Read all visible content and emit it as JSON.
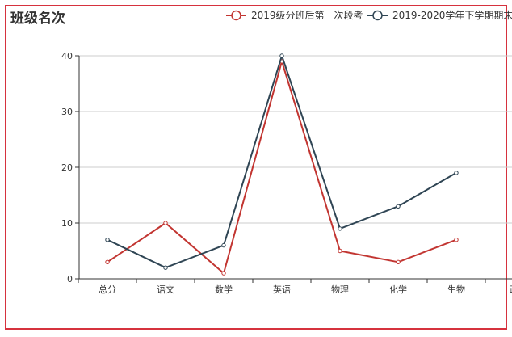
{
  "chart_data": {
    "type": "line",
    "title": "班级名次",
    "categories": [
      "总分",
      "语文",
      "数学",
      "英语",
      "物理",
      "化学",
      "生物",
      "政"
    ],
    "ylim": [
      0,
      40
    ],
    "yticks": [
      0,
      10,
      20,
      30,
      40
    ],
    "grid": true,
    "legend_position": "top-right",
    "series": [
      {
        "name": "2019级分班后第一次段考",
        "color": "#c23531",
        "values": [
          3,
          10,
          1,
          39,
          5,
          3,
          7,
          null
        ]
      },
      {
        "name": "2019-2020学年下学期期末",
        "color": "#2f4554",
        "values": [
          7,
          2,
          6,
          40,
          9,
          13,
          19,
          null
        ]
      }
    ]
  }
}
